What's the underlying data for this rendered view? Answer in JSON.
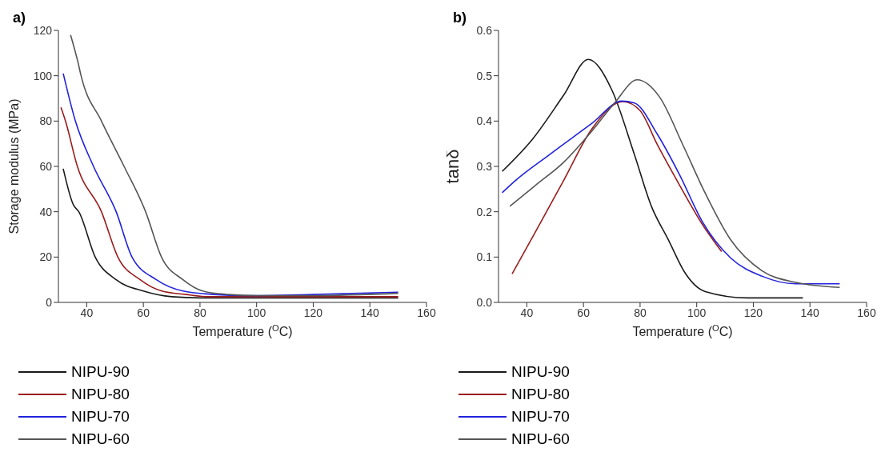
{
  "chart_data": [
    {
      "type": "line",
      "title": "a)",
      "xlabel": "Temperature ($^{O}$C)",
      "ylabel": "Storage modulus (MPa)",
      "xlim": [
        30,
        160
      ],
      "xticks": [
        40,
        60,
        80,
        100,
        120,
        140,
        160
      ],
      "ylim": [
        0,
        120
      ],
      "yticks": [
        0,
        20,
        40,
        60,
        80,
        100,
        120
      ],
      "legend": "bottom left",
      "series": [
        {
          "name": "NIPU-90",
          "color": "#1a1a1a",
          "x": [
            31.7,
            35.3,
            37.2,
            43,
            50.4,
            60,
            70,
            80,
            100,
            120,
            150
          ],
          "values": [
            59,
            43,
            40,
            20,
            10,
            5,
            2.5,
            2,
            2,
            2,
            2
          ]
        },
        {
          "name": "NIPU-80",
          "color": "#9b1c1c",
          "x": [
            30.9,
            32.5,
            36.7,
            45.2,
            51,
            58.9,
            66.5,
            75,
            83,
            100,
            120,
            150
          ],
          "values": [
            86,
            80,
            60,
            40,
            20,
            10,
            5,
            3.5,
            2.5,
            2.5,
            2.5,
            2.5
          ]
        },
        {
          "name": "NIPU-70",
          "color": "#2222dd",
          "x": [
            31.7,
            36,
            42.4,
            50.4,
            56,
            64.6,
            74,
            85,
            95.6,
            120,
            150
          ],
          "values": [
            101,
            80,
            60,
            40,
            20,
            10,
            5,
            3.5,
            3,
            3.5,
            4.5
          ]
        },
        {
          "name": "NIPU-60",
          "color": "#555555",
          "x": [
            34.3,
            36.9,
            38,
            45.2,
            53.2,
            60.8,
            66.4,
            74,
            81,
            90,
            100,
            120,
            150
          ],
          "values": [
            118,
            106,
            100,
            80,
            60,
            40,
            20,
            10,
            5,
            3.5,
            3,
            3,
            4
          ]
        }
      ]
    },
    {
      "type": "line",
      "title": "b)",
      "xlabel": "Temperature ($^{O}$C)",
      "ylabel": "tanδ",
      "xlim": [
        30,
        160
      ],
      "xticks": [
        40,
        60,
        80,
        100,
        120,
        140,
        160
      ],
      "ylim": [
        0,
        0.6
      ],
      "yticks": [
        {
          "value": 0,
          "label": "0.0"
        },
        0.1,
        0.2,
        0.3,
        0.4,
        0.5,
        0.6
      ],
      "legend": "bottom left",
      "series": [
        {
          "name": "NIPU-90",
          "color": "#1a1a1a",
          "x": [
            31.3,
            42,
            53,
            61.7,
            70,
            78,
            84,
            90,
            96,
            103,
            118,
            137.5
          ],
          "values": [
            0.289,
            0.36,
            0.457,
            0.536,
            0.469,
            0.326,
            0.212,
            0.138,
            0.064,
            0.024,
            0.01,
            0.01
          ]
        },
        {
          "name": "NIPU-80",
          "color": "#9b1c1c",
          "x": [
            34.8,
            43,
            53,
            63,
            74,
            80,
            86,
            94,
            102,
            108.8
          ],
          "values": [
            0.063,
            0.155,
            0.269,
            0.383,
            0.443,
            0.423,
            0.349,
            0.258,
            0.172,
            0.112
          ]
        },
        {
          "name": "NIPU-70",
          "color": "#2222dd",
          "x": [
            31.3,
            36,
            48,
            63,
            73.5,
            78,
            86,
            94,
            102,
            112,
            123,
            135,
            150.5
          ],
          "values": [
            0.242,
            0.269,
            0.326,
            0.395,
            0.444,
            0.44,
            0.372,
            0.281,
            0.178,
            0.098,
            0.058,
            0.041,
            0.041
          ]
        },
        {
          "name": "NIPU-60",
          "color": "#555555",
          "x": [
            34,
            43,
            53,
            63,
            71,
            79,
            87,
            95,
            103,
            112,
            123,
            135,
            150.5
          ],
          "values": [
            0.212,
            0.258,
            0.309,
            0.378,
            0.44,
            0.491,
            0.452,
            0.349,
            0.241,
            0.138,
            0.07,
            0.044,
            0.033
          ]
        }
      ]
    }
  ]
}
